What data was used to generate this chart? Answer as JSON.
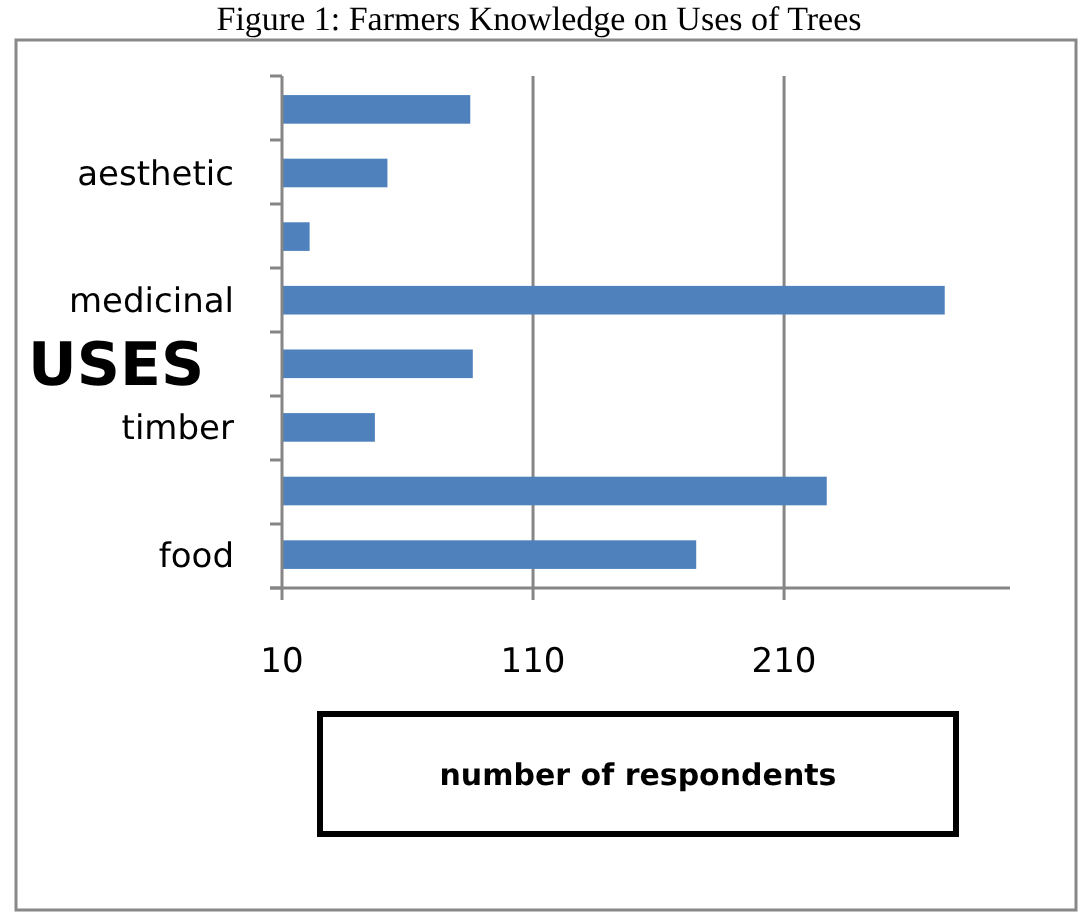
{
  "chart_data": {
    "type": "bar",
    "orientation": "horizontal",
    "title": "Figure 1: Farmers Knowledge on Uses of Trees",
    "xlabel": "number of respondents",
    "ylabel": "USES",
    "categories": [
      null,
      "aesthetic",
      null,
      "medicinal",
      null,
      "timber",
      null,
      "food"
    ],
    "values": [
      85,
      52,
      21,
      274,
      86,
      47,
      227,
      175
    ],
    "color": "#4f81bd",
    "xlim": [
      10,
      300
    ],
    "xticks": [
      10,
      110,
      210
    ],
    "grid": "x"
  }
}
